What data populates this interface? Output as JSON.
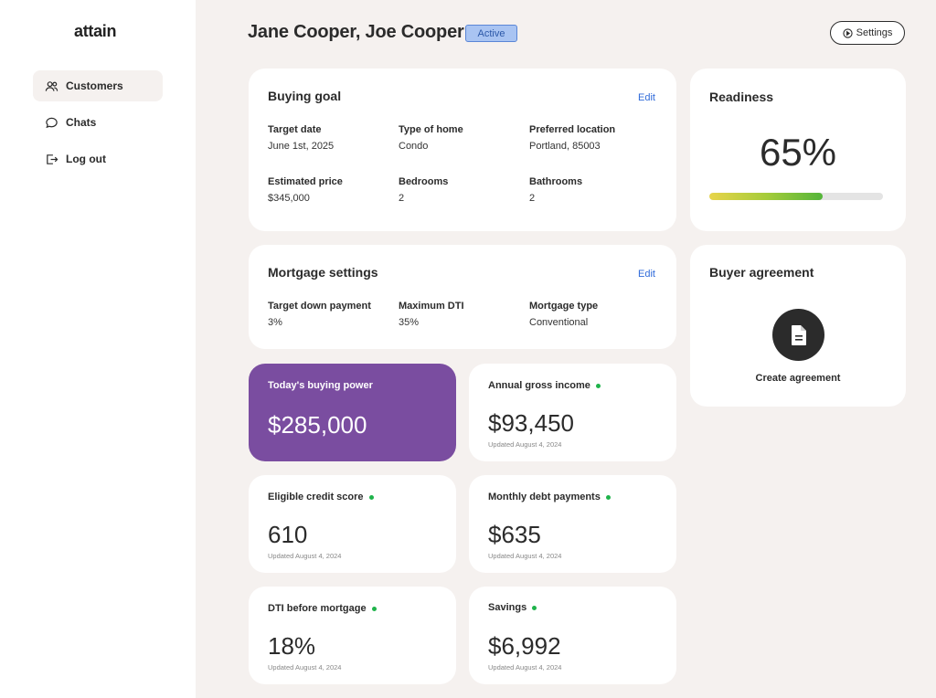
{
  "app": {
    "logo": "attain"
  },
  "sidebar": {
    "items": [
      {
        "label": "Customers",
        "icon": "users-icon",
        "active": true
      },
      {
        "label": "Chats",
        "icon": "chat-bubble-icon",
        "active": false
      },
      {
        "label": "Log out",
        "icon": "logout-icon",
        "active": false
      }
    ]
  },
  "header": {
    "title": "Jane Cooper, Joe Cooper",
    "status": "Active",
    "settings_label": "Settings"
  },
  "buying_goal": {
    "title": "Buying goal",
    "edit": "Edit",
    "fields": [
      {
        "label": "Target date",
        "value": "June 1st, 2025"
      },
      {
        "label": "Type of home",
        "value": "Condo"
      },
      {
        "label": "Preferred location",
        "value": "Portland, 85003"
      },
      {
        "label": "Estimated price",
        "value": "$345,000"
      },
      {
        "label": "Bedrooms",
        "value": "2"
      },
      {
        "label": "Bathrooms",
        "value": "2"
      }
    ]
  },
  "mortgage": {
    "title": "Mortgage settings",
    "edit": "Edit",
    "fields": [
      {
        "label": "Target down payment",
        "value": "3%"
      },
      {
        "label": "Maximum DTI",
        "value": "35%"
      },
      {
        "label": "Mortgage type",
        "value": "Conventional"
      }
    ]
  },
  "readiness": {
    "title": "Readiness",
    "value": "65%",
    "progress": 0.65
  },
  "agreement": {
    "title": "Buyer agreement",
    "action": "Create agreement",
    "icon": "document-icon"
  },
  "metrics": {
    "buying_power": {
      "label": "Today's buying power",
      "value": "$285,000"
    },
    "income": {
      "label": "Annual gross income",
      "value": "$93,450",
      "updated": "Updated August 4, 2024"
    },
    "credit": {
      "label": "Eligible credit score",
      "value": "610",
      "updated": "Updated August 4, 2024"
    },
    "debt": {
      "label": "Monthly debt payments",
      "value": "$635",
      "updated": "Updated August 4, 2024"
    },
    "dti": {
      "label": "DTI before mortgage",
      "value": "18%",
      "updated": "Updated August 4, 2024"
    },
    "savings": {
      "label": "Savings",
      "value": "$6,992",
      "updated": "Updated August 4, 2024"
    }
  },
  "colors": {
    "accent_purple": "#7a4da0",
    "status_green": "#1fb34b",
    "link_blue": "#2f6ad9",
    "badge_bg": "#a9c4f2"
  }
}
